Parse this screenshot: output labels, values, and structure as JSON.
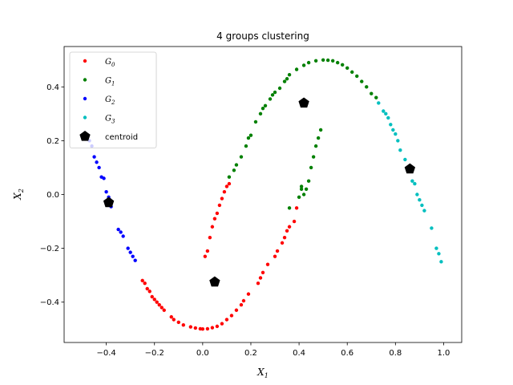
{
  "chart_data": {
    "type": "scatter",
    "title": "4 groups clustering",
    "xlabel": {
      "base": "X",
      "sub": "1"
    },
    "ylabel": {
      "base": "X",
      "sub": "2"
    },
    "xlim": [
      -0.575,
      1.075
    ],
    "ylim": [
      -0.55,
      0.55
    ],
    "xticks": [
      -0.4,
      -0.2,
      0.0,
      0.2,
      0.4,
      0.6,
      0.8,
      1.0
    ],
    "xtick_labels": [
      "−0.4",
      "−0.2",
      "0.0",
      "0.2",
      "0.4",
      "0.6",
      "0.8",
      "1.0"
    ],
    "yticks": [
      -0.4,
      -0.2,
      0.0,
      0.2,
      0.4
    ],
    "ytick_labels": [
      "−0.4",
      "−0.2",
      "0.0",
      "0.2",
      "0.4"
    ],
    "grid": false,
    "legend_position": "top-left",
    "series": [
      {
        "name": "G_0",
        "base": "G",
        "sub": "0",
        "color": "#ff0000",
        "marker": "dot",
        "points": [
          [
            -0.25,
            -0.32
          ],
          [
            -0.24,
            -0.33
          ],
          [
            -0.23,
            -0.35
          ],
          [
            -0.22,
            -0.36
          ],
          [
            -0.21,
            -0.38
          ],
          [
            -0.2,
            -0.39
          ],
          [
            -0.19,
            -0.4
          ],
          [
            -0.18,
            -0.41
          ],
          [
            -0.17,
            -0.42
          ],
          [
            -0.16,
            -0.43
          ],
          [
            -0.13,
            -0.455
          ],
          [
            -0.12,
            -0.465
          ],
          [
            -0.1,
            -0.475
          ],
          [
            -0.08,
            -0.485
          ],
          [
            -0.05,
            -0.492
          ],
          [
            -0.03,
            -0.496
          ],
          [
            -0.01,
            -0.499
          ],
          [
            0.0,
            -0.5
          ],
          [
            0.02,
            -0.499
          ],
          [
            0.04,
            -0.495
          ],
          [
            0.06,
            -0.49
          ],
          [
            0.08,
            -0.48
          ],
          [
            0.1,
            -0.465
          ],
          [
            0.12,
            -0.45
          ],
          [
            0.14,
            -0.43
          ],
          [
            0.16,
            -0.41
          ],
          [
            0.17,
            -0.395
          ],
          [
            0.19,
            -0.37
          ],
          [
            0.23,
            -0.33
          ],
          [
            0.24,
            -0.31
          ],
          [
            0.25,
            -0.29
          ],
          [
            0.27,
            -0.26
          ],
          [
            0.3,
            -0.23
          ],
          [
            0.31,
            -0.21
          ],
          [
            0.33,
            -0.18
          ],
          [
            0.34,
            -0.16
          ],
          [
            0.35,
            -0.135
          ],
          [
            0.36,
            -0.12
          ],
          [
            0.38,
            -0.1
          ],
          [
            0.39,
            -0.05
          ],
          [
            0.01,
            -0.23
          ],
          [
            0.02,
            -0.21
          ],
          [
            0.03,
            -0.16
          ],
          [
            0.04,
            -0.12
          ],
          [
            0.05,
            -0.09
          ],
          [
            0.06,
            -0.07
          ],
          [
            0.07,
            -0.04
          ],
          [
            0.08,
            -0.015
          ],
          [
            0.09,
            0.01
          ],
          [
            0.1,
            0.03
          ],
          [
            0.11,
            0.04
          ]
        ]
      },
      {
        "name": "G_1",
        "base": "G",
        "sub": "1",
        "color": "#008000",
        "marker": "dot",
        "points": [
          [
            0.11,
            0.065
          ],
          [
            0.13,
            0.09
          ],
          [
            0.14,
            0.11
          ],
          [
            0.16,
            0.14
          ],
          [
            0.18,
            0.18
          ],
          [
            0.19,
            0.21
          ],
          [
            0.2,
            0.22
          ],
          [
            0.22,
            0.27
          ],
          [
            0.24,
            0.3
          ],
          [
            0.25,
            0.32
          ],
          [
            0.26,
            0.33
          ],
          [
            0.28,
            0.355
          ],
          [
            0.29,
            0.37
          ],
          [
            0.3,
            0.38
          ],
          [
            0.32,
            0.395
          ],
          [
            0.34,
            0.42
          ],
          [
            0.35,
            0.43
          ],
          [
            0.36,
            0.445
          ],
          [
            0.39,
            0.465
          ],
          [
            0.42,
            0.48
          ],
          [
            0.44,
            0.49
          ],
          [
            0.47,
            0.497
          ],
          [
            0.5,
            0.5
          ],
          [
            0.52,
            0.499
          ],
          [
            0.54,
            0.497
          ],
          [
            0.56,
            0.49
          ],
          [
            0.58,
            0.482
          ],
          [
            0.6,
            0.47
          ],
          [
            0.62,
            0.455
          ],
          [
            0.64,
            0.44
          ],
          [
            0.66,
            0.42
          ],
          [
            0.68,
            0.4
          ],
          [
            0.7,
            0.375
          ],
          [
            0.72,
            0.36
          ],
          [
            0.41,
            0.03
          ],
          [
            0.42,
            0.0
          ],
          [
            0.43,
            0.02
          ],
          [
            0.44,
            0.05
          ],
          [
            0.45,
            0.1
          ],
          [
            0.46,
            0.14
          ],
          [
            0.47,
            0.18
          ],
          [
            0.48,
            0.21
          ],
          [
            0.49,
            0.24
          ],
          [
            0.4,
            -0.01
          ],
          [
            0.41,
            0.02
          ],
          [
            0.36,
            -0.05
          ]
        ]
      },
      {
        "name": "G_2",
        "base": "G",
        "sub": "2",
        "color": "#0000ff",
        "marker": "dot",
        "points": [
          [
            -0.48,
            0.22
          ],
          [
            -0.47,
            0.2
          ],
          [
            -0.46,
            0.18
          ],
          [
            -0.45,
            0.14
          ],
          [
            -0.44,
            0.12
          ],
          [
            -0.43,
            0.1
          ],
          [
            -0.42,
            0.065
          ],
          [
            -0.41,
            0.06
          ],
          [
            -0.4,
            0.01
          ],
          [
            -0.39,
            -0.01
          ],
          [
            -0.385,
            -0.02
          ],
          [
            -0.38,
            -0.045
          ],
          [
            -0.35,
            -0.13
          ],
          [
            -0.34,
            -0.14
          ],
          [
            -0.33,
            -0.155
          ],
          [
            -0.31,
            -0.2
          ],
          [
            -0.3,
            -0.215
          ],
          [
            -0.29,
            -0.23
          ],
          [
            -0.28,
            -0.245
          ]
        ]
      },
      {
        "name": "G_3",
        "base": "G",
        "sub": "3",
        "color": "#00bfbf",
        "marker": "dot",
        "points": [
          [
            0.73,
            0.34
          ],
          [
            0.75,
            0.31
          ],
          [
            0.76,
            0.3
          ],
          [
            0.77,
            0.285
          ],
          [
            0.78,
            0.26
          ],
          [
            0.79,
            0.24
          ],
          [
            0.8,
            0.225
          ],
          [
            0.81,
            0.2
          ],
          [
            0.82,
            0.165
          ],
          [
            0.84,
            0.13
          ],
          [
            0.85,
            0.1
          ],
          [
            0.87,
            0.05
          ],
          [
            0.88,
            0.04
          ],
          [
            0.89,
            0.0
          ],
          [
            0.9,
            -0.02
          ],
          [
            0.91,
            -0.04
          ],
          [
            0.92,
            -0.06
          ],
          [
            0.95,
            -0.125
          ],
          [
            0.97,
            -0.2
          ],
          [
            0.98,
            -0.22
          ],
          [
            0.99,
            -0.25
          ]
        ]
      }
    ],
    "centroids": {
      "name": "centroid",
      "color": "#000000",
      "marker": "pentagon",
      "points": [
        [
          -0.39,
          -0.03
        ],
        [
          0.05,
          -0.325
        ],
        [
          0.42,
          0.34
        ],
        [
          0.86,
          0.095
        ]
      ]
    }
  }
}
